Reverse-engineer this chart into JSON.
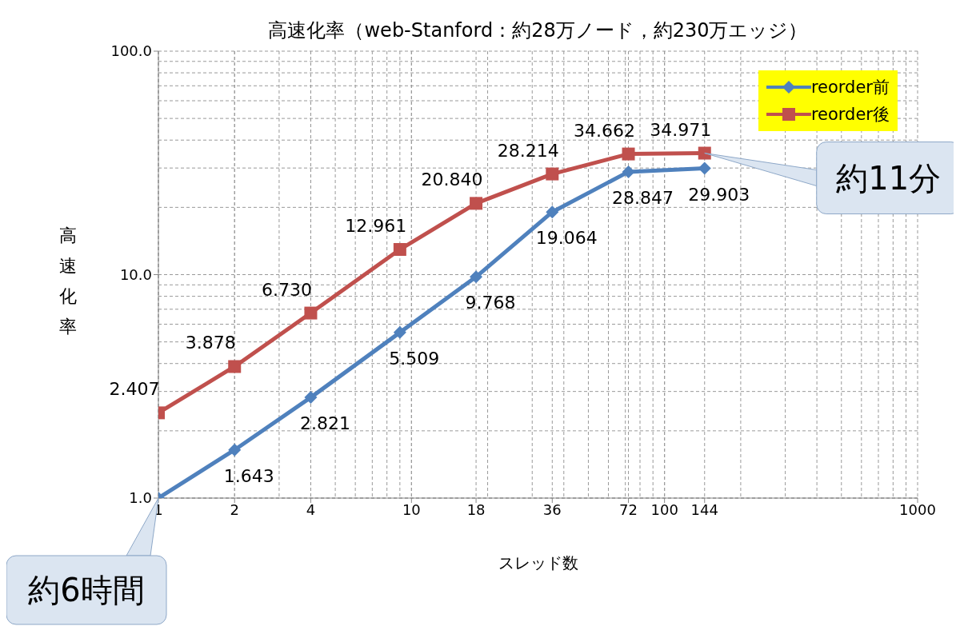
{
  "chart_data": {
    "type": "line",
    "title": "高速化率（web-Stanford：約28万ノード，約230万エッジ）",
    "xlabel": "スレッド数",
    "ylabel": "高速化率",
    "x": [
      1,
      2,
      4,
      9,
      18,
      36,
      72,
      144
    ],
    "series": [
      {
        "name": "reorder前",
        "color": "#4f81bd",
        "marker": "diamond",
        "values": [
          1.0,
          1.643,
          2.821,
          5.509,
          9.768,
          19.064,
          28.847,
          29.903
        ],
        "value_labels": [
          null,
          "1.643",
          "2.821",
          "5.509",
          "9.768",
          "19.064",
          "28.847",
          "29.903"
        ]
      },
      {
        "name": "reorder後",
        "color": "#c0504d",
        "marker": "square",
        "values": [
          2.407,
          3.878,
          6.73,
          12.961,
          20.84,
          28.214,
          34.662,
          34.971
        ],
        "value_labels": [
          "2.407",
          "3.878",
          "6.730",
          "12.961",
          "20.840",
          "28.214",
          "34.662",
          "34.971"
        ]
      }
    ],
    "log": "xy",
    "xlim": [
      1,
      1000
    ],
    "xticks": [
      1,
      2,
      4,
      10,
      18,
      36,
      72,
      100,
      144,
      1000
    ],
    "ylim": [
      1,
      100
    ],
    "yticks": [
      {
        "value": 1,
        "label": "1.0"
      },
      {
        "value": 10,
        "label": "10.0"
      },
      {
        "value": 100,
        "label": "100.0"
      }
    ],
    "grid": true,
    "legend": "top right",
    "line_style": "solid",
    "annotations": [
      {
        "text": "約11分",
        "x": 144,
        "y": 34.971
      },
      {
        "text": "約6時間",
        "x": 1,
        "y": 1.0
      }
    ]
  }
}
